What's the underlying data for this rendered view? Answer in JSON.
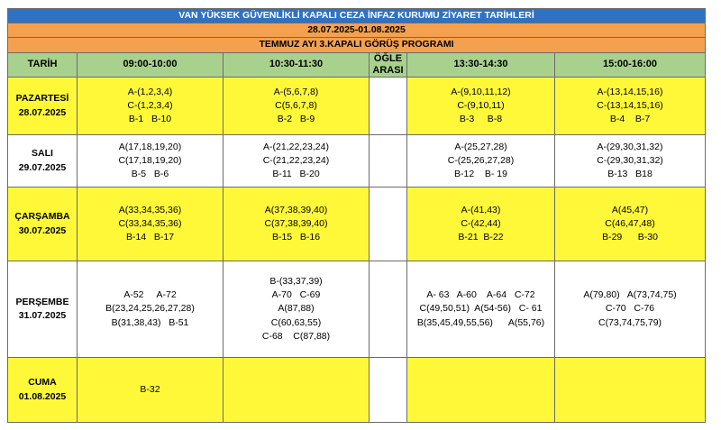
{
  "title": "VAN YÜKSEK GÜVENLİKLİ KAPALI CEZA İNFAZ KURUMU ZİYARET TARİHLERİ",
  "date_range": "28.07.2025-01.08.2025",
  "program": "TEMMUZ AYI 3.KAPALI GÖRÜŞ PROGRAMI",
  "headers": {
    "date": "TARİH",
    "slot1": "09:00-10:00",
    "slot2": "10:30-11:30",
    "break_line1": "ÖĞLE",
    "break_line2": "ARASI",
    "slot3": "13:30-14:30",
    "slot4": "15:00-16:00"
  },
  "rows": [
    {
      "day": "PAZARTESİ",
      "date": "28.07.2025",
      "s1": [
        "A-(1,2,3,4)",
        "C-(1,2,3,4)",
        "B-1   B-10"
      ],
      "s2": [
        "A-(5,6,7,8)",
        "C(5,6,7,8)",
        "B-2   B-9"
      ],
      "s3": [
        "A-(9,10,11,12)",
        "C-(9,10,11)",
        "B-3     B-8"
      ],
      "s4": [
        "A-(13,14,15,16)",
        "C-(13,14,15,16)",
        "B-4    B-7"
      ]
    },
    {
      "day": "SALI",
      "date": "29.07.2025",
      "s1": [
        "A(17,18,19,20)",
        "C(17,18,19,20)",
        "B-5   B-6"
      ],
      "s2": [
        "A-(21,22,23,24)",
        "C-(21,22,23,24)",
        "B-11   B-20"
      ],
      "s3": [
        "A-(25,27,28)",
        "C-(25,26,27,28)",
        "B-12    B- 19"
      ],
      "s4": [
        "A-(29,30,31,32)",
        "C-(29,30,31,32)",
        "B-13   B18"
      ]
    },
    {
      "day": "ÇARŞAMBA",
      "date": "30.07.2025",
      "s1": [
        "A(33,34,35,36)",
        "C(33,34,35,36)",
        "B-14   B-17"
      ],
      "s2": [
        "A(37,38,39,40)",
        "C(37,38,39,40)",
        "B-15   B-16"
      ],
      "s3": [
        "A-(41,43)",
        "C-(42,44)",
        "B-21  B-22"
      ],
      "s4": [
        "A(45,47)",
        "C(46,47,48)",
        "B-29      B-30"
      ]
    },
    {
      "day": "PERŞEMBE",
      "date": "31.07.2025",
      "s1": [
        "A-52     A-72",
        "B(23,24,25,26,27,28)",
        "B(31,38,43)   B-51"
      ],
      "s2": [
        "B-(33,37,39)",
        "A-70   C-69",
        "A(87,88)",
        "C(60,63,55)",
        "C-68    C(87,88)"
      ],
      "s3": [
        "A- 63   A-60    A-64   C-72",
        "C(49,50,51)  A(54-56)   C- 61",
        "B(35,45,49,55,56)      A(55,76)"
      ],
      "s4": [
        "A(79,80)   A(73,74,75)",
        "C-70   C-76",
        "C(73,74,75,79)"
      ]
    },
    {
      "day": "CUMA",
      "date": "01.08.2025",
      "s1": [
        "B-32"
      ],
      "s2": [],
      "s3": [],
      "s4": []
    }
  ]
}
